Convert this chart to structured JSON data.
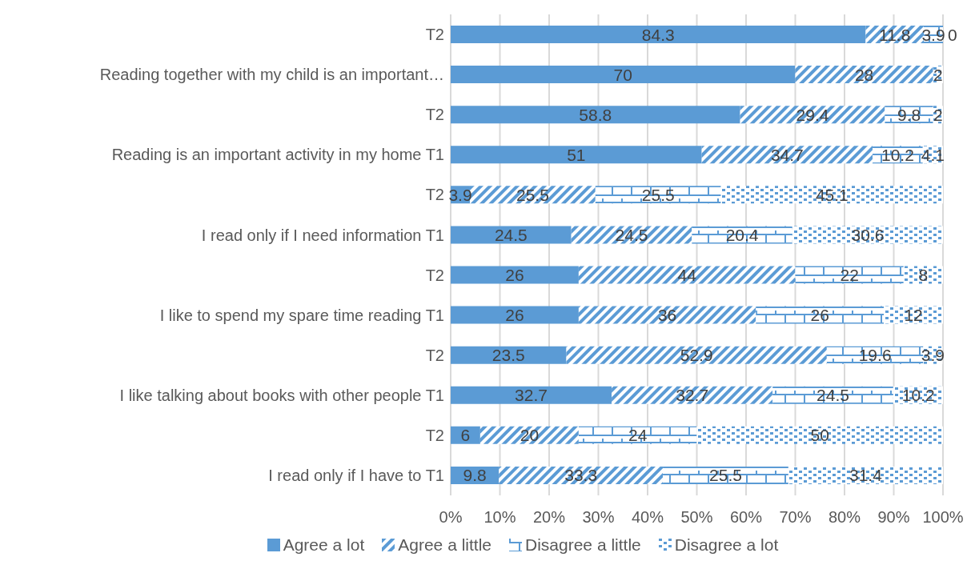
{
  "chart_data": {
    "type": "bar",
    "orientation": "horizontal",
    "stacked": true,
    "categories": [
      "T2",
      "Reading together with my child is an important…",
      "T2",
      "Reading is an important activity in my home T1",
      "T2",
      "I read only if I need information T1",
      "T2",
      "I like to spend my spare time reading T1",
      "T2",
      "I like talking about books with other people T1",
      "T2",
      "I read only if I have to T1"
    ],
    "series": [
      {
        "name": "Agree a lot",
        "color": "#5b9bd5",
        "values": [
          84.3,
          70,
          58.8,
          51,
          3.9,
          24.5,
          26,
          26,
          23.5,
          32.7,
          6,
          9.8
        ],
        "value_labels": [
          "84.3",
          "70",
          "58.8",
          "51",
          "3.9",
          "24.5",
          "26",
          "26",
          "23.5",
          "32.7",
          "6",
          "9.8"
        ]
      },
      {
        "name": "Agree a little",
        "color": "#5b9bd5",
        "values": [
          11.8,
          28,
          29.4,
          34.7,
          25.5,
          24.5,
          44,
          36,
          52.9,
          32.7,
          20,
          33.3
        ],
        "value_labels": [
          "11.8",
          "28",
          "29.4",
          "34.7",
          "25.5",
          "24.5",
          "44",
          "36",
          "52.9",
          "32.7",
          "20",
          "33.3"
        ]
      },
      {
        "name": "Disagree a little",
        "color": "#5b9bd5",
        "values": [
          3.9,
          0,
          9.8,
          10.2,
          25.5,
          20.4,
          22,
          26,
          19.6,
          24.5,
          24,
          25.5
        ],
        "value_labels": [
          "3.9",
          null,
          "9.8",
          "10.2",
          "25.5",
          "20.4",
          "22",
          "26",
          "19.6",
          "24.5",
          "24",
          "25.5"
        ]
      },
      {
        "name": "Disagree a lot",
        "color": "#5b9bd5",
        "values": [
          0,
          2,
          2,
          4.1,
          45.1,
          30.6,
          8,
          12,
          3.9,
          10.2,
          50,
          31.4
        ],
        "value_labels": [
          "0",
          "2",
          "2",
          "4.1",
          "45.1",
          "30.6",
          "8",
          "12",
          "3.9",
          "10.2",
          "50",
          "31.4"
        ]
      }
    ],
    "xlim": [
      0,
      100
    ],
    "xticks": [
      {
        "value": 0,
        "label": "0%"
      },
      {
        "value": 10,
        "label": "10%"
      },
      {
        "value": 20,
        "label": "20%"
      },
      {
        "value": 30,
        "label": "30%"
      },
      {
        "value": 40,
        "label": "40%"
      },
      {
        "value": 50,
        "label": "50%"
      },
      {
        "value": 60,
        "label": "60%"
      },
      {
        "value": 70,
        "label": "70%"
      },
      {
        "value": 80,
        "label": "80%"
      },
      {
        "value": 90,
        "label": "90%"
      },
      {
        "value": 100,
        "label": "100%"
      }
    ],
    "grid": "x",
    "legend": "bottom"
  }
}
